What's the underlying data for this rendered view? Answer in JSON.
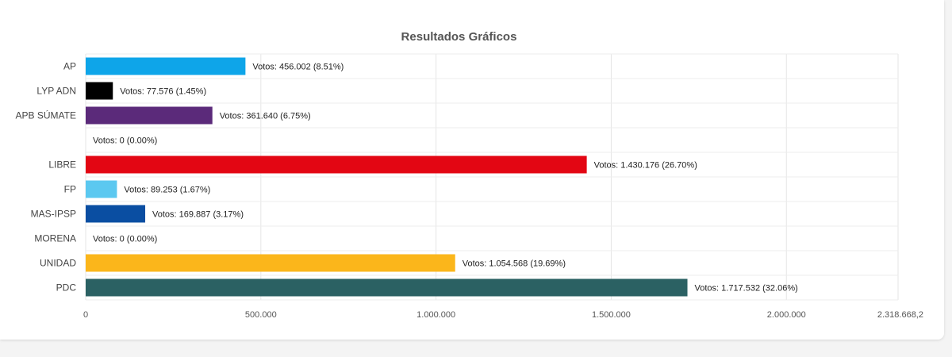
{
  "chart_data": {
    "type": "bar",
    "orientation": "horizontal",
    "title": "Resultados Gráficos",
    "xlabel": "",
    "ylabel": "",
    "xlim": [
      0,
      2318668.2
    ],
    "grid": true,
    "categories": [
      "AP",
      "LYP ADN",
      "APB SÚMATE",
      "",
      "LIBRE",
      "FP",
      "MAS-IPSP",
      "MORENA",
      "UNIDAD",
      "PDC"
    ],
    "values": [
      456002,
      77576,
      361640,
      0,
      1430176,
      89253,
      169887,
      0,
      1054568,
      1717532
    ],
    "colors": [
      "#0ea5e9",
      "#000000",
      "#5b2a7a",
      "#ffffff",
      "#e30613",
      "#5bc8f0",
      "#0a4ea2",
      "#ffffff",
      "#fbb61b",
      "#2b6163"
    ],
    "data_labels": [
      "Votos: 456.002 (8.51%)",
      "Votos: 77.576 (1.45%)",
      "Votos: 361.640 (6.75%)",
      "Votos: 0 (0.00%)",
      "Votos: 1.430.176 (26.70%)",
      "Votos: 89.253 (1.67%)",
      "Votos: 169.887 (3.17%)",
      "Votos: 0 (0.00%)",
      "Votos: 1.054.568 (19.69%)",
      "Votos: 1.717.532 (32.06%)"
    ],
    "x_ticks": [
      0,
      500000,
      1000000,
      1500000,
      2000000,
      2318668.2
    ],
    "x_tick_labels": [
      "0",
      "500.000",
      "1.000.000",
      "1.500.000",
      "2.000.000",
      "2.318.668,2"
    ]
  }
}
